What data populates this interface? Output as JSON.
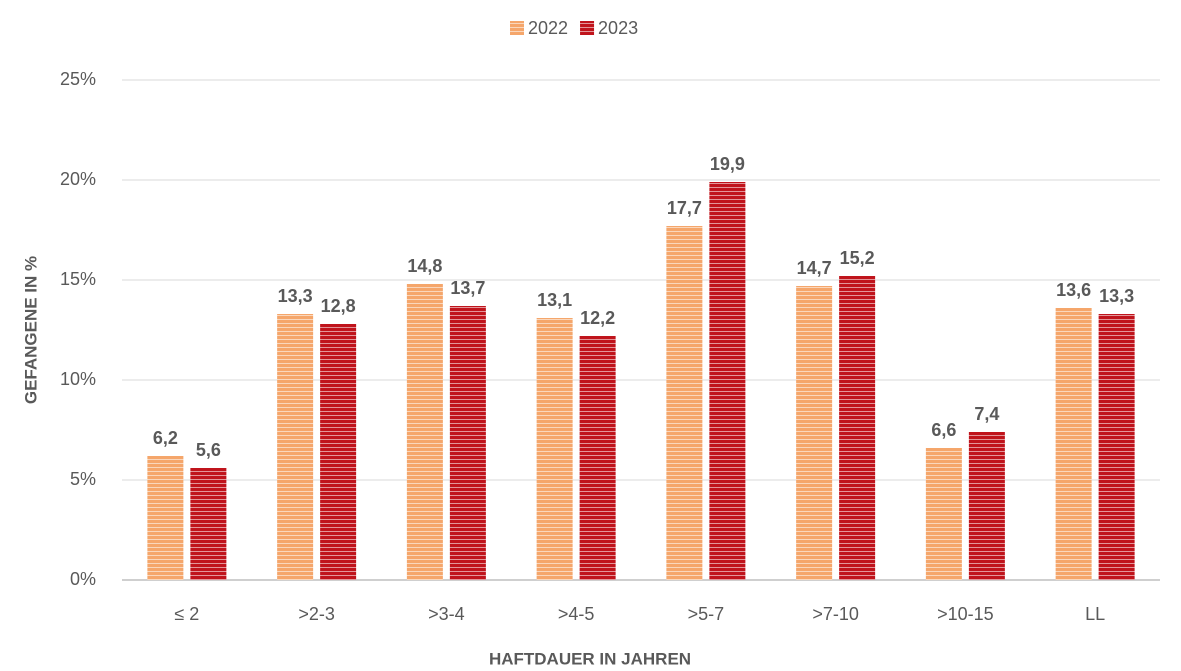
{
  "chart_data": {
    "type": "bar",
    "x_label": "HAFTDAUER IN JAHREN",
    "y_label": "GEFANGENE IN  %",
    "categories": [
      "≤ 2",
      ">2-3",
      ">3-4",
      ">4-5",
      ">5-7",
      ">7-10",
      ">10-15",
      "LL"
    ],
    "series": [
      {
        "name": "2022",
        "color": "#f5a66b",
        "values": [
          6.2,
          13.3,
          14.8,
          13.1,
          17.7,
          14.7,
          6.6,
          13.6
        ],
        "value_labels": [
          "6,2",
          "13,3",
          "14,8",
          "13,1",
          "17,7",
          "14,7",
          "6,6",
          "13,6"
        ]
      },
      {
        "name": "2023",
        "color": "#c0141c",
        "values": [
          5.6,
          12.8,
          13.7,
          12.2,
          19.9,
          15.2,
          7.4,
          13.3
        ],
        "value_labels": [
          "5,6",
          "12,8",
          "13,7",
          "12,2",
          "19,9",
          "15,2",
          "7,4",
          "13,3"
        ]
      }
    ],
    "ylim": [
      0,
      25
    ],
    "yticks": [
      {
        "value": 0,
        "label": "0%"
      },
      {
        "value": 5,
        "label": "5%"
      },
      {
        "value": 10,
        "label": "10%"
      },
      {
        "value": 15,
        "label": "15%"
      },
      {
        "value": 20,
        "label": "20%"
      },
      {
        "value": 25,
        "label": "25%"
      }
    ],
    "grid": true,
    "legend": "top"
  }
}
